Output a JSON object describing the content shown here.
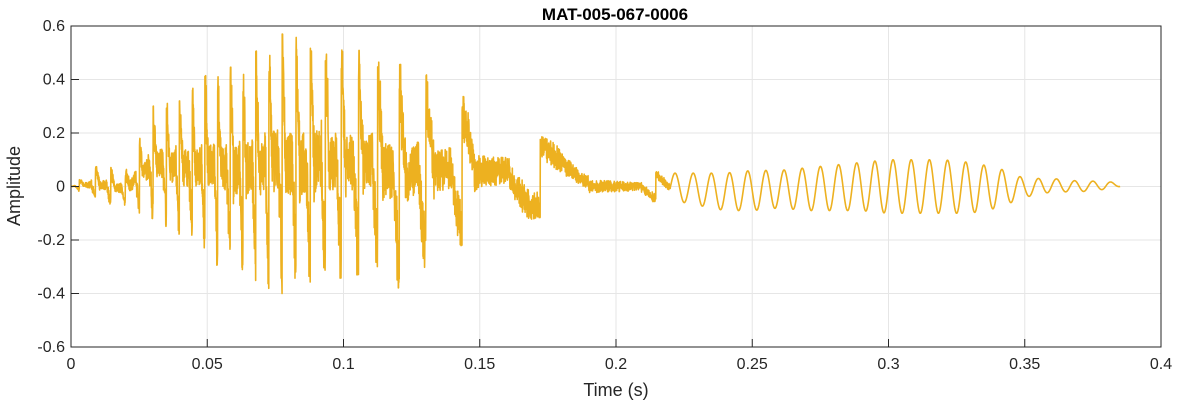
{
  "chart_data": {
    "type": "line",
    "title": "MAT-005-067-0006",
    "xlabel": "Time (s)",
    "ylabel": "Amplitude",
    "xlim": [
      0,
      0.4
    ],
    "ylim": [
      -0.6,
      0.6
    ],
    "xticks": [
      0,
      0.05,
      0.1,
      0.15,
      0.2,
      0.25,
      0.3,
      0.35,
      0.4
    ],
    "xtick_labels": [
      "0",
      "0.05",
      "0.1",
      "0.15",
      "0.2",
      "0.25",
      "0.3",
      "0.35",
      "0.4"
    ],
    "yticks": [
      -0.6,
      -0.4,
      -0.2,
      0,
      0.2,
      0.4,
      0.6
    ],
    "ytick_labels": [
      "-0.6",
      "-0.4",
      "-0.2",
      "0",
      "0.2",
      "0.4",
      "0.6"
    ],
    "grid": true,
    "color": "#EDB120",
    "series": [
      {
        "x": [
          0,
          0.01,
          0.02,
          0.03,
          0.04,
          0.05,
          0.06,
          0.07,
          0.075,
          0.08,
          0.09,
          0.1,
          0.11,
          0.12,
          0.13,
          0.14,
          0.15,
          0.16,
          0.17,
          0.18,
          0.19,
          0.2,
          0.21,
          0.22,
          0.23,
          0.24,
          0.25,
          0.26,
          0.27,
          0.28,
          0.29,
          0.3,
          0.31,
          0.32,
          0.33,
          0.34,
          0.35,
          0.36,
          0.37,
          0.38,
          0.385
        ],
        "y_max": [
          0.0,
          0.08,
          0.06,
          0.3,
          0.32,
          0.42,
          0.45,
          0.52,
          0.58,
          0.56,
          0.55,
          0.52,
          0.5,
          0.46,
          0.42,
          0.36,
          0.3,
          0.25,
          0.2,
          0.15,
          0.1,
          0.08,
          0.06,
          0.05,
          0.05,
          0.05,
          0.06,
          0.06,
          0.07,
          0.08,
          0.09,
          0.1,
          0.1,
          0.1,
          0.09,
          0.07,
          0.03,
          0.03,
          0.02,
          0.02,
          0.01
        ],
        "y_min": [
          0.0,
          -0.06,
          -0.08,
          -0.12,
          -0.18,
          -0.28,
          -0.32,
          -0.36,
          -0.4,
          -0.4,
          -0.36,
          -0.34,
          -0.32,
          -0.38,
          -0.3,
          -0.24,
          -0.18,
          -0.14,
          -0.12,
          -0.1,
          -0.09,
          -0.08,
          -0.06,
          -0.05,
          -0.07,
          -0.09,
          -0.09,
          -0.08,
          -0.09,
          -0.09,
          -0.09,
          -0.1,
          -0.1,
          -0.1,
          -0.1,
          -0.08,
          -0.04,
          -0.02,
          -0.02,
          -0.01,
          0.0
        ]
      }
    ]
  }
}
